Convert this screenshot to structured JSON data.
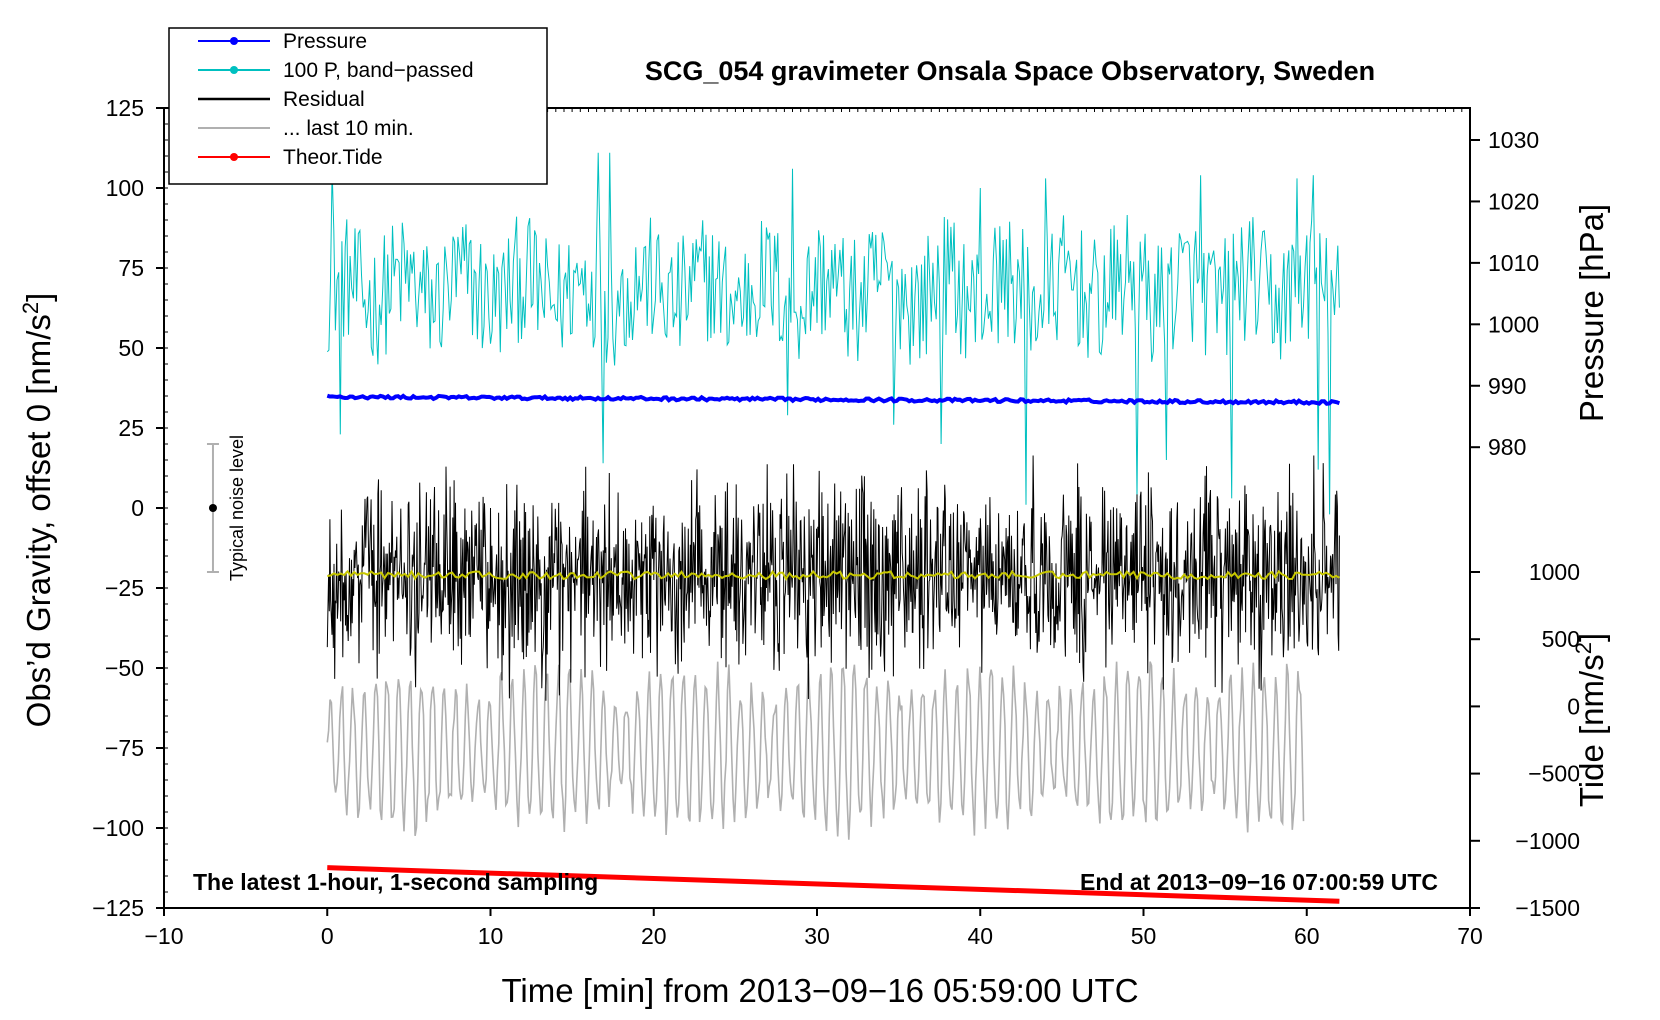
{
  "chart_data": {
    "type": "line",
    "title": "SCG_054 gravimeter Onsala Space Observatory, Sweden",
    "xlabel": "Time [min] from 2013−09−16 05:59:00 UTC",
    "ylabel_main": "Obs’d Gravity, offset 0 [nm/s",
    "ylabel_main_sup": "2",
    "ylabel_main_close": "]",
    "ylabel_pressure": "Pressure [hPa]",
    "ylabel_tide": "Tide [nm/s",
    "ylabel_tide_sup": "2",
    "ylabel_tide_close": "]",
    "xlim": [
      -10,
      70
    ],
    "ylim": [
      -125,
      125
    ],
    "x_ticks": [
      -10,
      0,
      10,
      20,
      30,
      40,
      50,
      60,
      70
    ],
    "x_tick_labels": [
      "−10",
      "0",
      "10",
      "20",
      "30",
      "40",
      "50",
      "60",
      "70"
    ],
    "y_ticks": [
      -125,
      -100,
      -75,
      -50,
      -25,
      0,
      25,
      50,
      75,
      100,
      125
    ],
    "y_tick_labels": [
      "−125",
      "−100",
      "−75",
      "−50",
      "−25",
      "0",
      "25",
      "50",
      "75",
      "100",
      "125"
    ],
    "pressure_axis": {
      "ticks": [
        980,
        990,
        1000,
        1010,
        1020,
        1030
      ],
      "tick_labels": [
        "980",
        "990",
        "1000",
        "1010",
        "1020",
        "1030"
      ],
      "map": {
        "value_a": 980,
        "gravity_a": 19,
        "value_b": 1030,
        "gravity_b": 115
      }
    },
    "tide_axis": {
      "ticks": [
        -1500,
        -1000,
        -500,
        0,
        500,
        1000
      ],
      "tick_labels": [
        "−1500",
        "−1000",
        "−500",
        "0",
        "500",
        "1000"
      ],
      "map": {
        "value_a": -1500,
        "gravity_a": -125,
        "value_b": 1000,
        "gravity_b": -20
      }
    },
    "legend": [
      {
        "label": "Pressure",
        "color": "#0000ff",
        "style": "line-dot"
      },
      {
        "label": "100 P, band−passed",
        "color": "#00c0c0",
        "style": "line-dot"
      },
      {
        "label": "Residual",
        "color": "#000000",
        "style": "line"
      },
      {
        "label": "... last 10 min.",
        "color": "#b0b0b0",
        "style": "line"
      },
      {
        "label": "Theor.Tide",
        "color": "#ff0000",
        "style": "line-dot"
      }
    ],
    "series": [
      {
        "name": "Pressure",
        "unit": "hPa",
        "color": "#0000ff",
        "x_range": [
          0,
          62
        ],
        "start_value": 988.2,
        "end_value": 987.3,
        "noise": 0.25
      },
      {
        "name": "100 P, band−passed",
        "unit": "nm/s2",
        "color": "#00c0c0",
        "x_range": [
          0,
          62
        ],
        "center": 68,
        "amplitude": 20,
        "spikes": [
          {
            "x": 0.3,
            "y": 106
          },
          {
            "x": 0.8,
            "y": 23
          },
          {
            "x": 16.6,
            "y": 111
          },
          {
            "x": 16.9,
            "y": 14
          },
          {
            "x": 17.3,
            "y": 111
          },
          {
            "x": 28.5,
            "y": 106
          },
          {
            "x": 28.2,
            "y": 29
          },
          {
            "x": 34.7,
            "y": 26
          },
          {
            "x": 37.6,
            "y": 20
          },
          {
            "x": 40.0,
            "y": 100
          },
          {
            "x": 42.8,
            "y": 1
          },
          {
            "x": 44.0,
            "y": 103
          },
          {
            "x": 49.6,
            "y": 3
          },
          {
            "x": 51.4,
            "y": 15
          },
          {
            "x": 53.5,
            "y": 104
          },
          {
            "x": 55.4,
            "y": 3
          },
          {
            "x": 59.4,
            "y": 103
          },
          {
            "x": 60.4,
            "y": 104
          },
          {
            "x": 60.7,
            "y": 12
          },
          {
            "x": 61.4,
            "y": -2
          }
        ]
      },
      {
        "name": "Residual",
        "unit": "nm/s2",
        "color": "#000000",
        "x_range": [
          0,
          62
        ],
        "center": -21,
        "amplitude": 15,
        "max": 17,
        "min": -63
      },
      {
        "name": "Residual (smoothed)",
        "unit": "nm/s2",
        "color": "#c8c800",
        "x_range": [
          0,
          62
        ],
        "center": -21,
        "amplitude": 1.2
      },
      {
        "name": "... last 10 min.",
        "unit": "nm/s2",
        "color": "#b0b0b0",
        "x_range": [
          0,
          59.8
        ],
        "center": -75,
        "amplitude": 24,
        "max": -48,
        "min": -111
      },
      {
        "name": "Theor.Tide",
        "unit": "nm/s2",
        "color": "#ff0000",
        "x_range": [
          0,
          62
        ],
        "start_value": -1200,
        "end_value": -1450
      }
    ],
    "noise_bar": {
      "x": -7,
      "center": 0,
      "low": -20,
      "high": 20,
      "label": "Typical noise level"
    },
    "annotations": {
      "bottom_left": "The latest 1-hour, 1-second sampling",
      "bottom_right": "End at 2013−09−16 07:00:59 UTC"
    }
  }
}
